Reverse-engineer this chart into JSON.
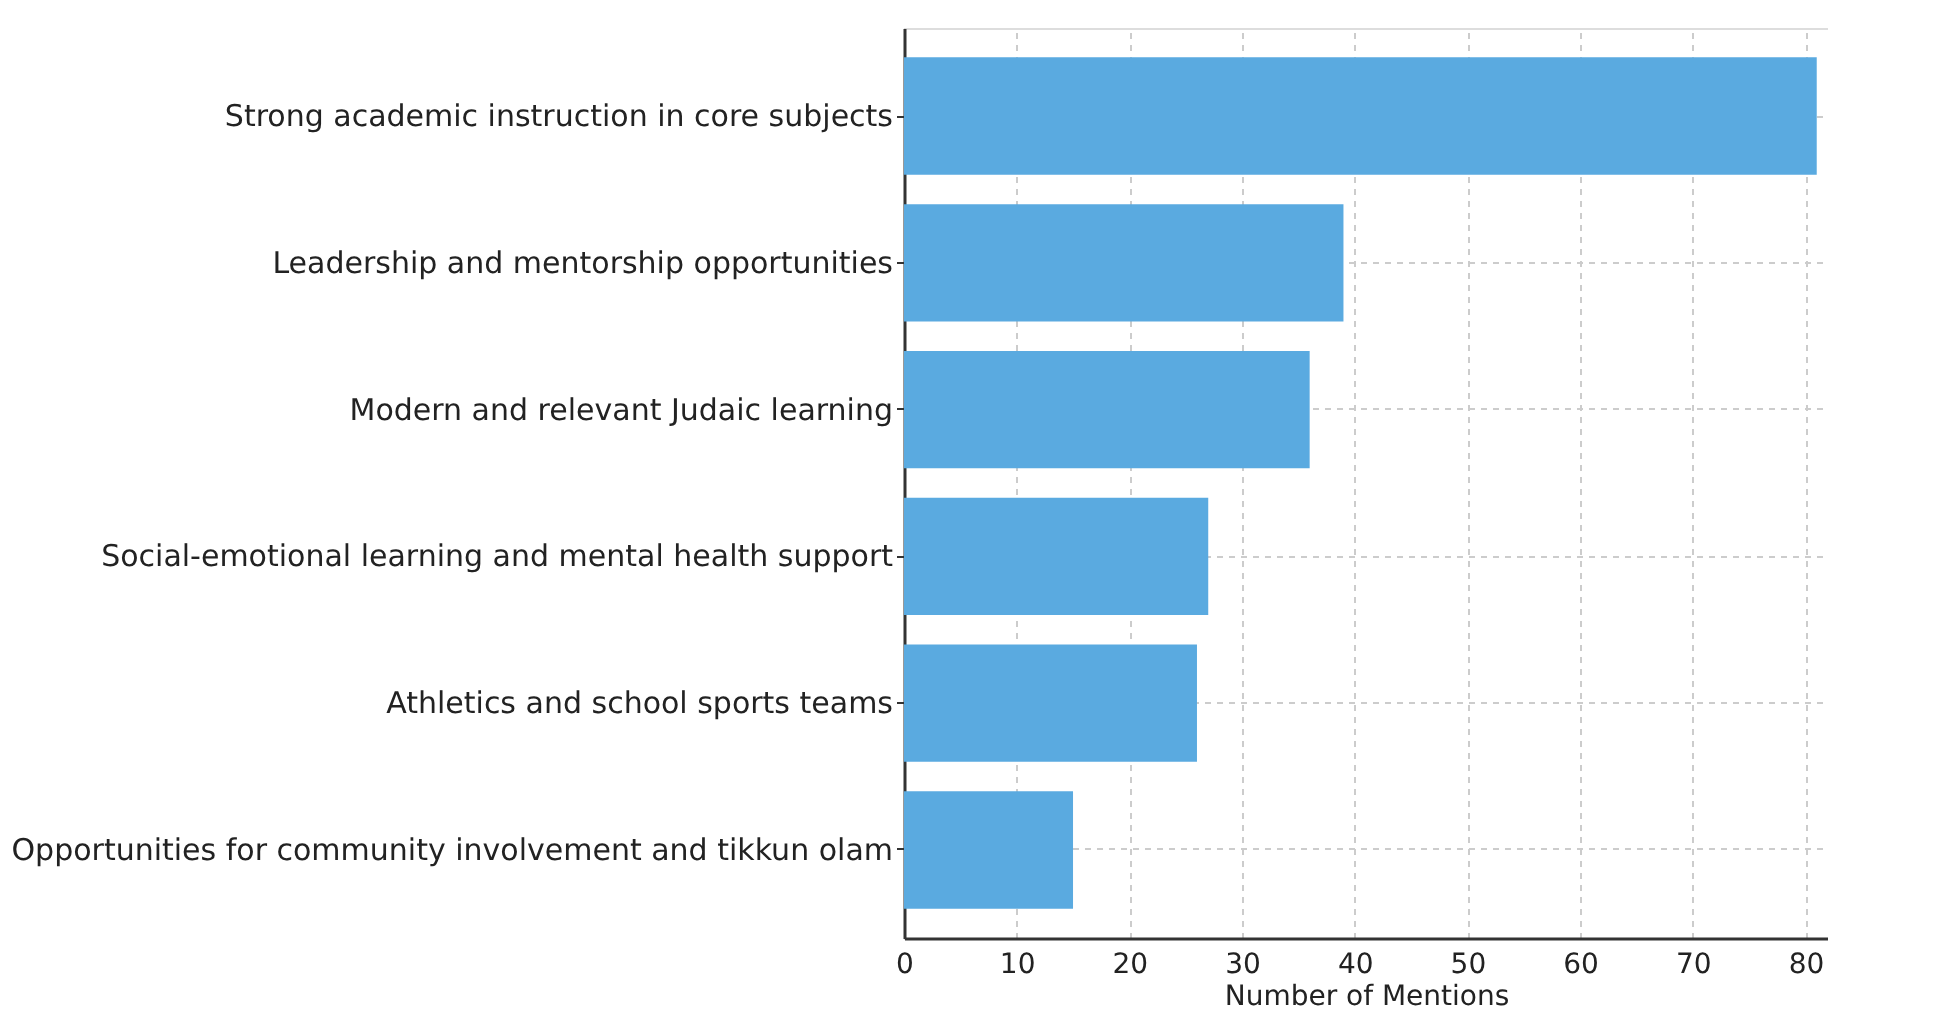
{
  "chart_data": {
    "type": "bar",
    "orientation": "horizontal",
    "xlabel": "Number of Mentions",
    "categories": [
      "Strong academic instruction in core subjects",
      "Leadership and mentorship opportunities",
      "Modern and relevant Judaic learning",
      "Social-emotional learning and mental health support",
      "Athletics and school sports teams",
      "Opportunities for community involvement and tikkun olam"
    ],
    "values": [
      81,
      39,
      36,
      27,
      26,
      15
    ],
    "color": "#5aaae0",
    "xlim": [
      0,
      82
    ],
    "xticks": [
      0,
      10,
      20,
      30,
      40,
      50,
      60,
      70,
      80
    ],
    "grid": true
  }
}
